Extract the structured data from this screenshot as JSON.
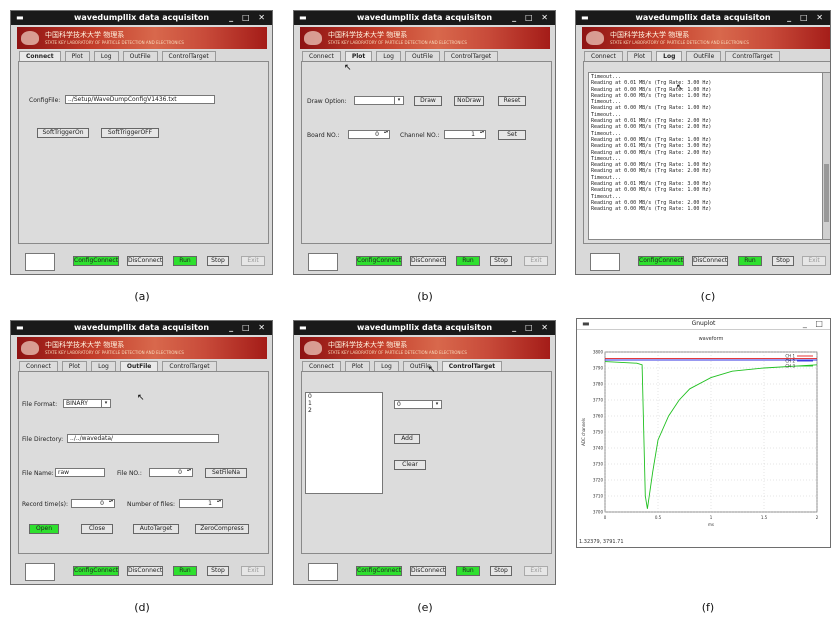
{
  "window_title": "wavedumpllix data acquisiton",
  "banner": {
    "text": "中国科学技术大学 物理系",
    "subtitle": "STATE KEY LABORATORY OF PARTICLE DETECTION AND ELECTRONICS"
  },
  "tabs": {
    "a": [
      "Connect",
      "Plot",
      "Log",
      "OutFile",
      "ControlTarget"
    ],
    "b": [
      "Connect",
      "Plot",
      "Log",
      "OutFile",
      "ControlTarget"
    ],
    "c": [
      "Connect",
      "Plot",
      "Log",
      "OutFile",
      "ControlTarget"
    ],
    "d": [
      "Connect",
      "Plot",
      "Log",
      "OutFile",
      "ControlTarget"
    ],
    "e": [
      "Connect",
      "Plot",
      "Log",
      "OutFile",
      "ControlTarget"
    ]
  },
  "bottom": {
    "config_connect": "ConfigConnect",
    "disconnect": "DisConnect",
    "run": "Run",
    "stop": "Stop",
    "exit": "Exit"
  },
  "a": {
    "config_label": "ConfigFile:",
    "config_value": "../Setup/WaveDumpConfigV1436.txt",
    "trigger_on": "SoftTriggerOn",
    "trigger_off": "SoftTriggerOFF"
  },
  "b": {
    "draw_option_label": "Draw Option:",
    "draw": "Draw",
    "nodraw": "NoDraw",
    "reset": "Reset",
    "board_label": "Board NO.:",
    "board_value": "0",
    "channel_label": "Channel NO.:",
    "channel_value": "1",
    "set": "Set"
  },
  "c": {
    "log_lines": [
      "Timeout...",
      "Reading at 0.01 MB/s (Trg Rate: 3.00 Hz)",
      "Reading at 0.00 MB/s (Trg Rate: 1.00 Hz)",
      "Reading at 0.00 MB/s (Trg Rate: 1.00 Hz)",
      "Timeout...",
      "Reading at 0.00 MB/s (Trg Rate: 1.00 Hz)",
      "Timeout...",
      "Reading at 0.01 MB/s (Trg Rate: 2.00 Hz)",
      "Reading at 0.00 MB/s (Trg Rate: 2.00 Hz)",
      "Timeout...",
      "Reading at 0.00 MB/s (Trg Rate: 1.00 Hz)",
      "Reading at 0.01 MB/s (Trg Rate: 3.00 Hz)",
      "Reading at 0.00 MB/s (Trg Rate: 2.00 Hz)",
      "Timeout...",
      "Reading at 0.00 MB/s (Trg Rate: 1.00 Hz)",
      "Reading at 0.00 MB/s (Trg Rate: 2.00 Hz)",
      "Timeout...",
      "Reading at 0.01 MB/s (Trg Rate: 3.00 Hz)",
      "Reading at 0.00 MB/s (Trg Rate: 1.00 Hz)",
      "Timeout...",
      "Reading at 0.00 MB/s (Trg Rate: 2.00 Hz)",
      "Reading at 0.00 MB/s (Trg Rate: 1.00 Hz)"
    ]
  },
  "d": {
    "file_format_label": "File Format:",
    "file_format_value": "BINARY",
    "dir_label": "File Directory:",
    "dir_value": "../../wavedata/",
    "name_label": "File Name:",
    "name_value": "raw",
    "fileno_label": "File NO.:",
    "fileno_value": "0",
    "set_filename": "SetFileNa",
    "record_label": "Record time(s):",
    "record_value": "0",
    "number_label": "Number of files:",
    "number_value": "1",
    "open": "Open",
    "close": "Close",
    "auto_target": "AutoTarget",
    "zero_compress": "ZeroCompress"
  },
  "e": {
    "list_items": [
      "0",
      "1",
      "2"
    ],
    "select_value": "0",
    "add": "Add",
    "clear": "Clear"
  },
  "gnuplot": {
    "title": "Gnuplot",
    "plot_title": "waveform",
    "status": "1.32379,  3791.71",
    "xlabel": "ms",
    "ylabel": "ADC channels",
    "legend": [
      "CH 1",
      "CH 2",
      "CH 3"
    ]
  },
  "captions": [
    "(a)",
    "(b)",
    "(c)",
    "(d)",
    "(e)",
    "(f)"
  ],
  "chart_data": {
    "type": "line",
    "title": "waveform",
    "xlabel": "ms",
    "ylabel": "ADC channels",
    "ylim": [
      3700,
      3800
    ],
    "xlim": [
      0,
      2
    ],
    "x_ticks": [
      "0",
      "0.5",
      "1",
      "1.5",
      "2"
    ],
    "y_ticks": [
      "3700",
      "3710",
      "3720",
      "3730",
      "3740",
      "3750",
      "3760",
      "3770",
      "3780",
      "3790",
      "3800"
    ],
    "series": [
      {
        "name": "CH 1",
        "color": "#e02020",
        "x": [
          0,
          2
        ],
        "y": [
          3796,
          3796
        ]
      },
      {
        "name": "CH 2",
        "color": "#3030e0",
        "x": [
          0,
          2
        ],
        "y": [
          3795,
          3795
        ]
      },
      {
        "name": "CH 3",
        "color": "#20c020",
        "x": [
          0,
          0.3,
          0.35,
          0.38,
          0.4,
          0.45,
          0.5,
          0.6,
          0.7,
          0.8,
          1.0,
          1.2,
          1.5,
          2.0
        ],
        "y": [
          3794,
          3793,
          3792,
          3710,
          3702,
          3725,
          3745,
          3760,
          3770,
          3777,
          3784,
          3788,
          3790,
          3792
        ]
      }
    ]
  }
}
